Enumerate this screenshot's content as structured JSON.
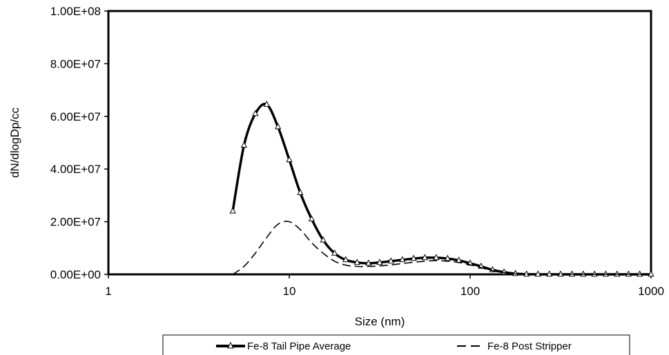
{
  "chart_data": {
    "type": "line",
    "title": "",
    "xlabel": "Size (nm)",
    "ylabel": "dN/dlogDp/cc",
    "x_scale": "log",
    "xlim": [
      1,
      1000
    ],
    "ylim": [
      0,
      100000000
    ],
    "x_ticks": [
      "1",
      "10",
      "100",
      "1000"
    ],
    "y_ticks": [
      "0.00E+00",
      "2.00E+07",
      "4.00E+07",
      "6.00E+07",
      "8.00E+07",
      "1.00E+08"
    ],
    "grid": false,
    "legend_position": "bottom",
    "colors": {
      "series": "#000000",
      "background": "#ffffff"
    },
    "series": [
      {
        "name": "Fe-8 Tail Pipe Average",
        "style": "solid-thick-triangle-markers",
        "x": [
          4.87,
          5.62,
          6.49,
          7.5,
          8.66,
          10.0,
          11.5,
          13.3,
          15.4,
          17.8,
          20.5,
          23.7,
          27.4,
          31.6,
          36.5,
          42.2,
          48.7,
          56.2,
          64.9,
          75.0,
          86.6,
          100,
          115,
          133,
          154,
          178,
          205,
          237,
          274,
          316,
          365,
          422,
          487,
          562,
          649,
          750,
          866,
          1000
        ],
        "y": [
          24000000,
          49000000,
          61000000,
          64500000,
          56000000,
          43500000,
          31000000,
          21000000,
          13000000,
          8000000,
          5500000,
          4500000,
          4200000,
          4500000,
          5000000,
          5500000,
          6000000,
          6300000,
          6300000,
          6000000,
          5300000,
          4200000,
          3000000,
          1700000,
          800000,
          250000,
          50000,
          0,
          0,
          0,
          0,
          0,
          0,
          0,
          0,
          0,
          0,
          0
        ]
      },
      {
        "name": "Fe-8 Post Stripper",
        "style": "dashed",
        "x": [
          4.87,
          5.62,
          6.49,
          7.5,
          8.66,
          10.0,
          11.5,
          13.3,
          15.4,
          17.8,
          20.5,
          23.7,
          27.4,
          31.6,
          36.5,
          42.2,
          48.7,
          56.2,
          64.9,
          75.0,
          86.6,
          100,
          115,
          133,
          154,
          178,
          205,
          237,
          274,
          316,
          365,
          422,
          487,
          562,
          649,
          750,
          866,
          1000
        ],
        "y": [
          0,
          3000000,
          8000000,
          14000000,
          19000000,
          20000000,
          17000000,
          12000000,
          8000000,
          5000000,
          3500000,
          3000000,
          3000000,
          3200000,
          3600000,
          4100000,
          4600000,
          5000000,
          5200000,
          5000000,
          4500000,
          3600000,
          2500000,
          1400000,
          600000,
          150000,
          0,
          0,
          0,
          0,
          0,
          0,
          0,
          0,
          0,
          0,
          0,
          0
        ]
      }
    ]
  }
}
